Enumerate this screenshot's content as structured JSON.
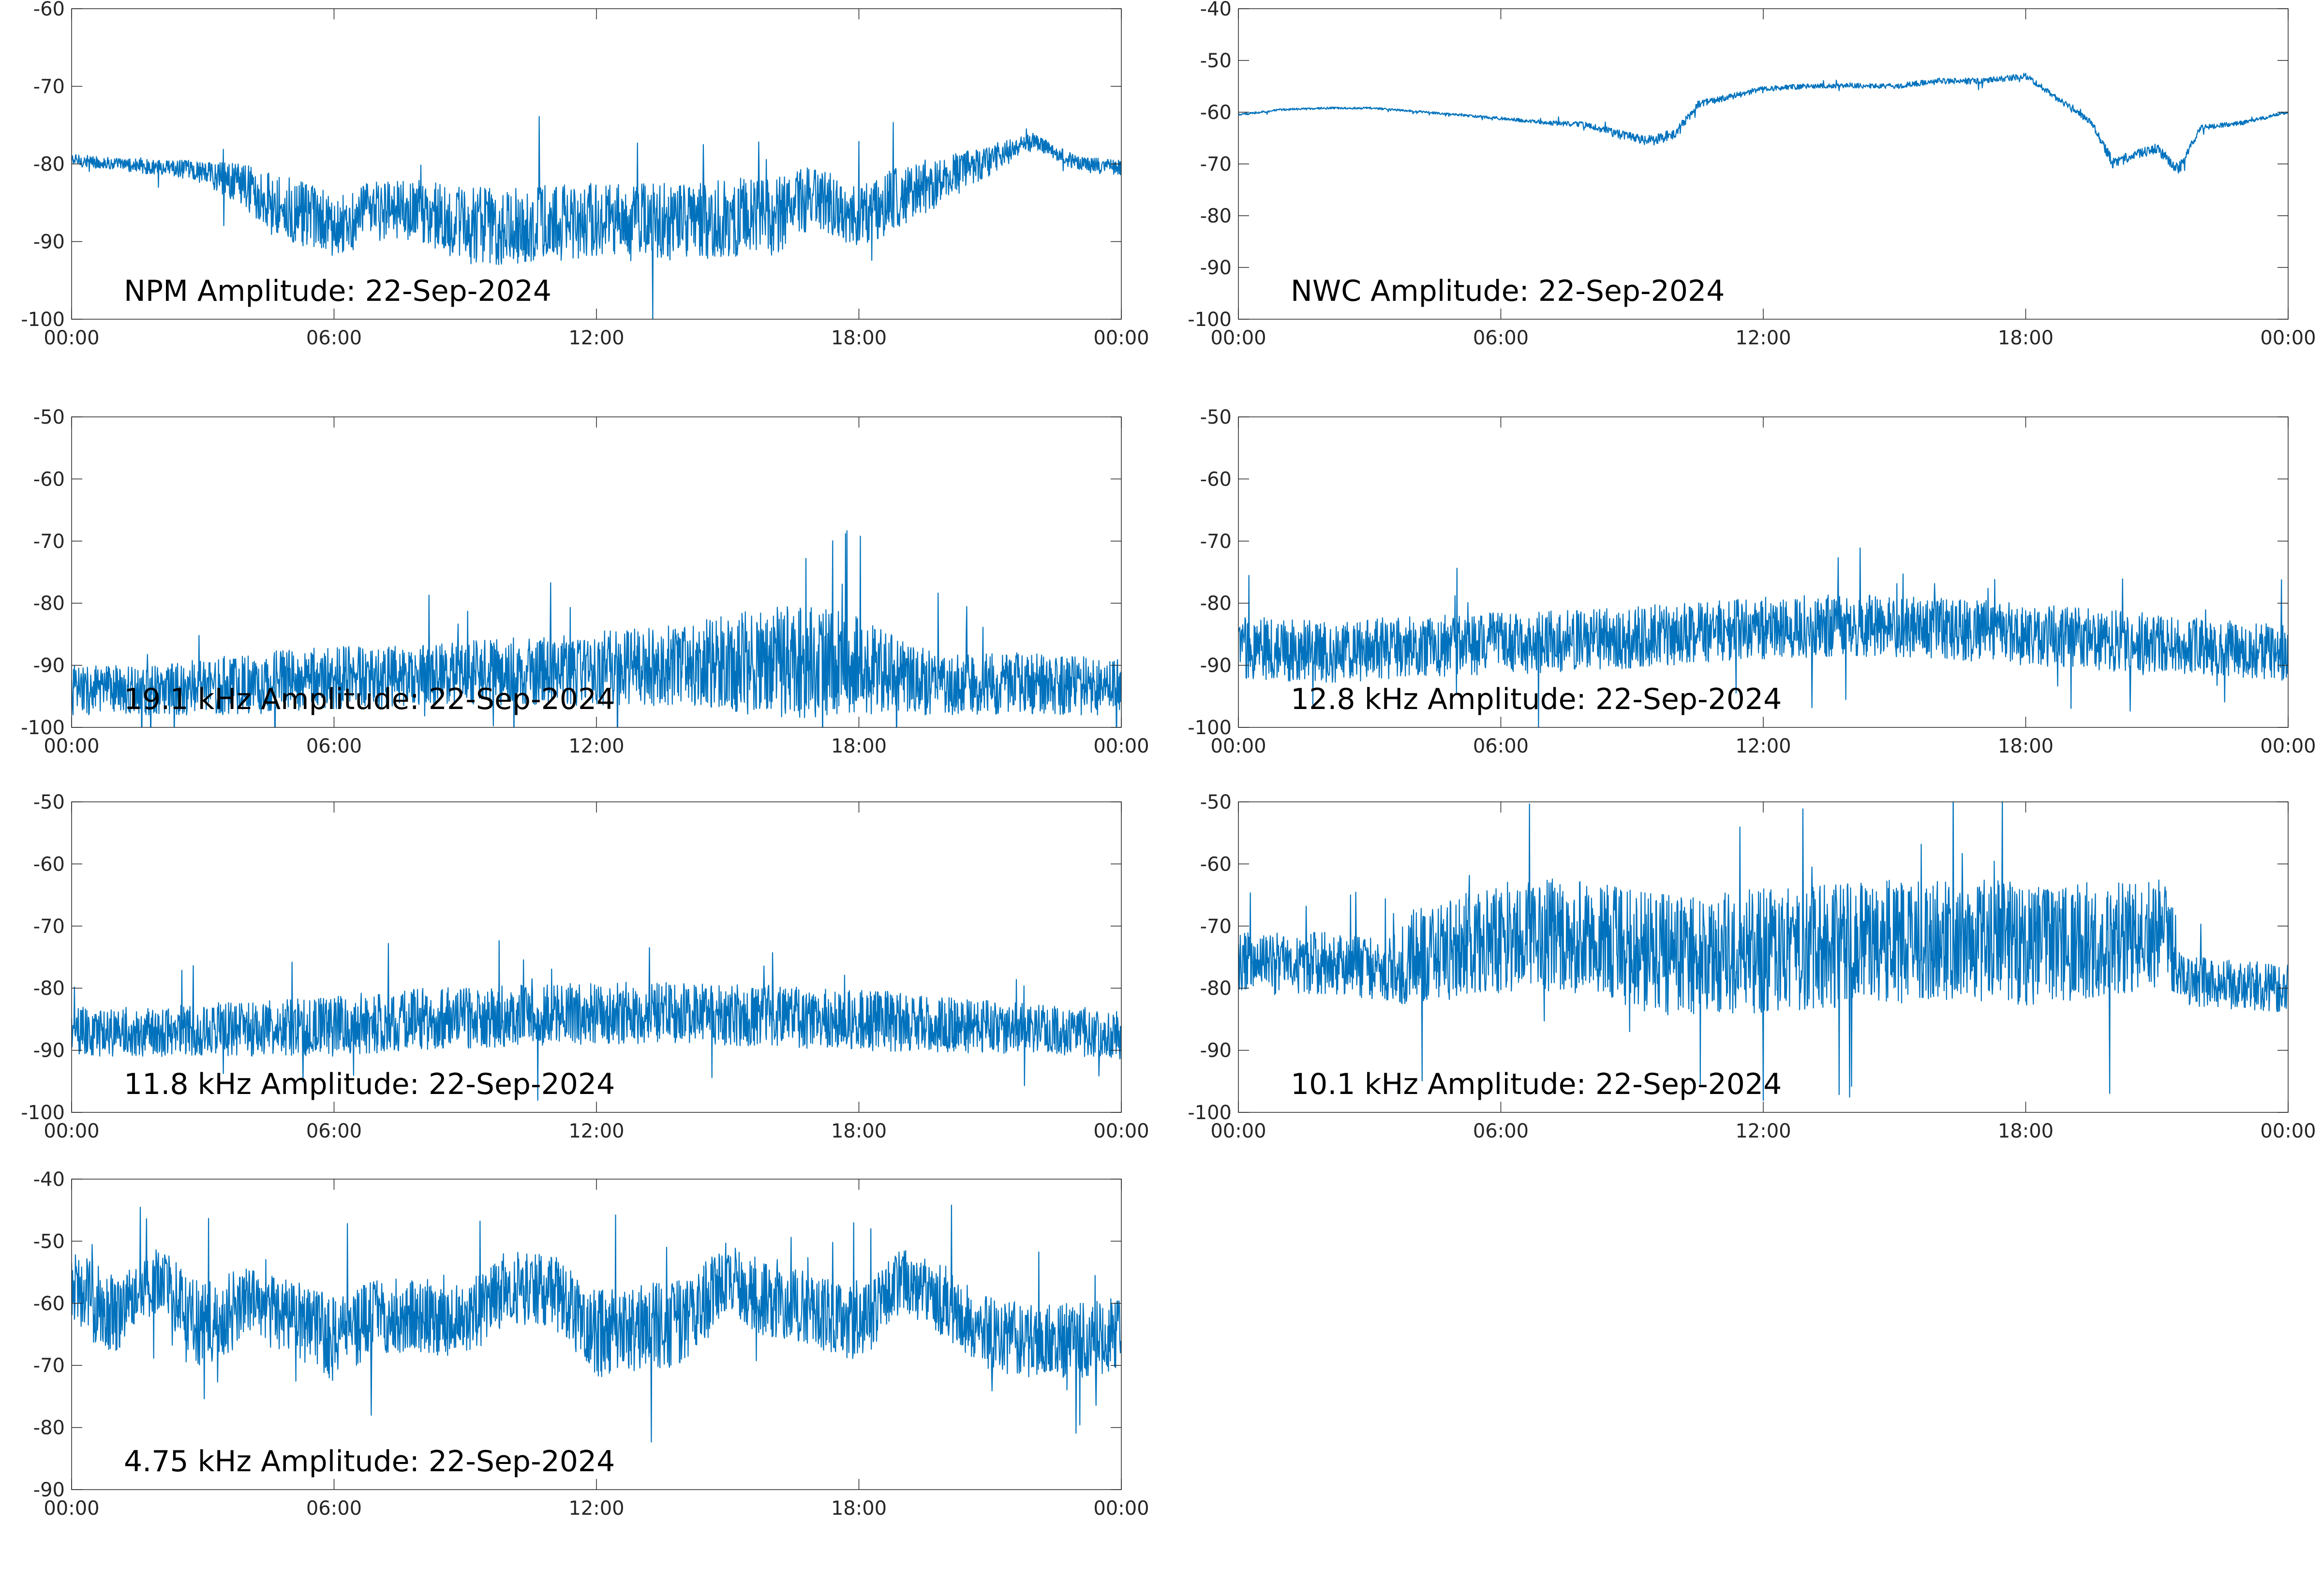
{
  "line_color": "#0072BD",
  "chart_data": [
    {
      "type": "line",
      "title": "NPM Amplitude: 22-Sep-2024",
      "xlabel": "",
      "ylabel": "",
      "x_ticks": [
        "00:00",
        "06:00",
        "12:00",
        "18:00",
        "00:00"
      ],
      "xlim_hours": [
        0,
        24
      ],
      "ylim": [
        -100,
        -60
      ],
      "y_ticks": [
        -60,
        -70,
        -80,
        -90,
        -100
      ],
      "grid": false,
      "series": [
        {
          "x_hours": [
            0,
            1,
            2,
            3,
            4,
            5,
            6,
            7,
            8,
            9,
            10,
            11,
            12,
            13,
            14,
            15,
            16,
            17,
            18,
            19,
            20,
            21,
            22,
            23,
            24
          ],
          "center": [
            -79.5,
            -80,
            -80.5,
            -81,
            -83,
            -86,
            -88,
            -86,
            -86,
            -88,
            -88,
            -87.5,
            -87.5,
            -87.5,
            -87.5,
            -87,
            -87,
            -84,
            -87,
            -84,
            -82,
            -79.5,
            -77,
            -80,
            -80.5
          ],
          "spread": [
            0.8,
            0.8,
            1,
            1.5,
            3,
            4.5,
            4,
            4,
            4,
            5,
            5,
            5,
            5,
            5,
            5,
            5,
            5,
            4,
            4,
            4,
            3,
            2,
            1,
            1,
            1
          ]
        }
      ]
    },
    {
      "type": "line",
      "title": "NWC Amplitude: 22-Sep-2024",
      "xlabel": "",
      "ylabel": "",
      "x_ticks": [
        "00:00",
        "06:00",
        "12:00",
        "18:00",
        "00:00"
      ],
      "xlim_hours": [
        0,
        24
      ],
      "ylim": [
        -100,
        -40
      ],
      "y_ticks": [
        -40,
        -50,
        -60,
        -70,
        -80,
        -90,
        -100
      ],
      "grid": false,
      "series": [
        {
          "x_hours": [
            0,
            1,
            2,
            3,
            4,
            5,
            6,
            7,
            8,
            9,
            9.5,
            10,
            10.5,
            11,
            12,
            13,
            14,
            15,
            16,
            17,
            18,
            18.5,
            19,
            19.5,
            20,
            20.5,
            21,
            21.5,
            22,
            23,
            24
          ],
          "center": [
            -60.5,
            -59.5,
            -59.2,
            -59.2,
            -59.8,
            -60.5,
            -61.2,
            -62,
            -62.5,
            -65,
            -65.5,
            -64,
            -58.5,
            -57.5,
            -55.5,
            -55,
            -54.8,
            -55,
            -54,
            -54,
            -53,
            -56,
            -59,
            -62,
            -70,
            -68,
            -67,
            -71,
            -63,
            -62,
            -60
          ],
          "spread": [
            0.2,
            0.2,
            0.2,
            0.2,
            0.2,
            0.2,
            0.3,
            0.4,
            0.6,
            1,
            1,
            1,
            0.8,
            0.6,
            0.5,
            0.5,
            0.5,
            0.5,
            0.6,
            0.6,
            0.6,
            0.6,
            0.6,
            0.6,
            1.2,
            1,
            1,
            1.2,
            0.5,
            0.4,
            0.3
          ]
        }
      ]
    },
    {
      "type": "line",
      "title": "19.1 kHz Amplitude: 22-Sep-2024",
      "xlabel": "",
      "ylabel": "",
      "x_ticks": [
        "00:00",
        "06:00",
        "12:00",
        "18:00",
        "00:00"
      ],
      "xlim_hours": [
        0,
        24
      ],
      "ylim": [
        -100,
        -50
      ],
      "y_ticks": [
        -50,
        -60,
        -70,
        -80,
        -90,
        -100
      ],
      "grid": false,
      "series": [
        {
          "x_hours": [
            0,
            2,
            4,
            6,
            8,
            10,
            12,
            14,
            15,
            16,
            17,
            18,
            19,
            20,
            22,
            24
          ],
          "center": [
            -94,
            -94,
            -93,
            -92,
            -91.5,
            -91,
            -90.5,
            -90,
            -89.5,
            -89.5,
            -89.5,
            -90,
            -92,
            -93,
            -93,
            -93.5
          ],
          "spread": [
            4,
            4,
            5,
            5,
            5,
            5.5,
            6,
            6.5,
            8,
            9,
            9,
            8,
            6,
            5,
            5,
            4.5
          ]
        }
      ]
    },
    {
      "type": "line",
      "title": "12.8 kHz Amplitude: 22-Sep-2024",
      "xlabel": "",
      "ylabel": "",
      "x_ticks": [
        "00:00",
        "06:00",
        "12:00",
        "18:00",
        "00:00"
      ],
      "xlim_hours": [
        0,
        24
      ],
      "ylim": [
        -100,
        -50
      ],
      "y_ticks": [
        -50,
        -60,
        -70,
        -80,
        -90,
        -100
      ],
      "grid": false,
      "series": [
        {
          "x_hours": [
            0,
            2,
            4,
            6,
            8,
            10,
            12,
            14,
            16,
            18,
            20,
            22,
            24
          ],
          "center": [
            -87,
            -88,
            -87,
            -86.5,
            -86,
            -85,
            -84,
            -83.5,
            -84,
            -85,
            -86,
            -87,
            -88
          ],
          "spread": [
            5,
            5,
            5,
            5,
            5,
            5,
            5,
            5,
            5,
            5,
            5,
            4.5,
            4.5
          ]
        }
      ]
    },
    {
      "type": "line",
      "title": "11.8 kHz Amplitude: 22-Sep-2024",
      "xlabel": "",
      "ylabel": "",
      "x_ticks": [
        "00:00",
        "06:00",
        "12:00",
        "18:00",
        "00:00"
      ],
      "xlim_hours": [
        0,
        24
      ],
      "ylim": [
        -100,
        -50
      ],
      "y_ticks": [
        -50,
        -60,
        -70,
        -80,
        -90,
        -100
      ],
      "grid": false,
      "series": [
        {
          "x_hours": [
            0,
            2,
            4,
            6,
            8,
            10,
            12,
            14,
            16,
            18,
            20,
            22,
            24
          ],
          "center": [
            -87,
            -87,
            -86.5,
            -86,
            -85,
            -84.5,
            -84,
            -84,
            -84.5,
            -85,
            -86,
            -86.5,
            -87.5
          ],
          "spread": [
            4,
            4,
            4.5,
            5,
            5,
            5,
            5,
            5,
            5,
            5,
            4.5,
            4,
            4
          ]
        }
      ]
    },
    {
      "type": "line",
      "title": "10.1 kHz Amplitude: 22-Sep-2024",
      "xlabel": "",
      "ylabel": "",
      "x_ticks": [
        "00:00",
        "06:00",
        "12:00",
        "18:00",
        "00:00"
      ],
      "xlim_hours": [
        0,
        24
      ],
      "ylim": [
        -100,
        -50
      ],
      "y_ticks": [
        -50,
        -60,
        -70,
        -80,
        -90,
        -100
      ],
      "grid": false,
      "series": [
        {
          "x_hours": [
            0,
            2,
            3.5,
            4,
            6,
            8,
            9,
            10,
            12,
            14,
            16,
            18,
            20,
            21.3,
            21.6,
            22,
            24
          ],
          "center": [
            -76,
            -76,
            -77,
            -75,
            -72,
            -71,
            -74,
            -75,
            -74,
            -73,
            -72,
            -73,
            -72,
            -71,
            -79,
            -79,
            -80
          ],
          "spread": [
            5,
            5,
            5,
            8,
            9,
            9,
            10,
            10,
            10,
            10,
            10,
            10,
            9,
            9,
            4,
            4,
            4
          ]
        }
      ]
    },
    {
      "type": "line",
      "title": "4.75 kHz Amplitude: 22-Sep-2024",
      "xlabel": "",
      "ylabel": "",
      "x_ticks": [
        "00:00",
        "06:00",
        "12:00",
        "18:00",
        "00:00"
      ],
      "xlim_hours": [
        0,
        24
      ],
      "ylim": [
        -90,
        -40
      ],
      "y_ticks": [
        -40,
        -50,
        -60,
        -70,
        -80,
        -90
      ],
      "grid": false,
      "series": [
        {
          "x_hours": [
            0,
            0.5,
            1,
            2,
            3,
            4,
            5,
            6,
            7,
            8,
            9,
            10,
            10.5,
            11,
            12,
            13,
            14,
            15,
            16,
            17,
            18,
            19,
            20,
            21,
            22,
            23,
            24
          ],
          "center": [
            -57,
            -60,
            -62,
            -56,
            -64,
            -60,
            -62,
            -66,
            -62,
            -62,
            -63,
            -57,
            -58,
            -58,
            -65,
            -64,
            -63,
            -56,
            -60,
            -61,
            -64,
            -56,
            -60,
            -65,
            -66,
            -66,
            -65
          ],
          "spread": [
            5,
            7,
            6,
            5,
            7,
            6,
            6,
            7,
            6,
            6,
            6,
            6,
            6,
            6,
            7,
            7,
            7,
            6,
            6,
            6,
            6,
            5,
            6,
            6,
            6,
            6,
            6
          ]
        }
      ]
    }
  ]
}
